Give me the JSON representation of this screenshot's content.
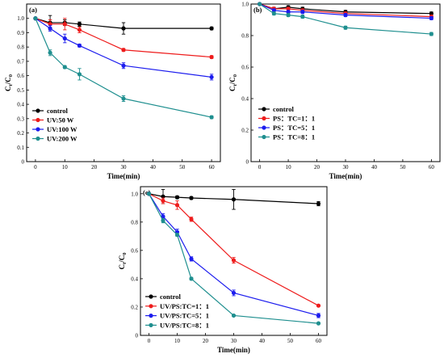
{
  "chart_data": [
    {
      "type": "line",
      "panel": "(a)",
      "xlabel": "Time(min)",
      "ylabel_main": "C",
      "ylabel_sub1": "t",
      "ylabel_mid": "/C",
      "ylabel_sub2": "0",
      "xlim": [
        -3,
        63
      ],
      "ylim": [
        0,
        1.1
      ],
      "xticks": [
        0,
        10,
        20,
        30,
        40,
        50,
        60
      ],
      "yticks": [
        0,
        0.1,
        0.2,
        0.3,
        0.4,
        0.5,
        0.6,
        0.7,
        0.8,
        0.9,
        1.0
      ],
      "ytick_labels": [
        "0",
        "0.1",
        "0.2",
        "0.3",
        "0.4",
        "0.5",
        "0.6",
        "0.7",
        "0.8",
        "0.9",
        "1.0"
      ],
      "legend_position": "bottom-left",
      "x": [
        0,
        5,
        10,
        15,
        30,
        60
      ],
      "series": [
        {
          "name": "control",
          "color": "#000000",
          "values": [
            1.0,
            0.97,
            0.97,
            0.96,
            0.93,
            0.93
          ],
          "errors": [
            0,
            0.05,
            0.02,
            0.015,
            0.04,
            0.01
          ]
        },
        {
          "name": "UV:50 W",
          "color": "#ee1c1c",
          "values": [
            1.0,
            0.96,
            0.96,
            0.92,
            0.78,
            0.73
          ],
          "errors": [
            0,
            0.03,
            0.04,
            0.02,
            0.01,
            0.01
          ]
        },
        {
          "name": "UV:100 W",
          "color": "#1c1cee",
          "values": [
            1.0,
            0.93,
            0.86,
            0.81,
            0.67,
            0.59
          ],
          "errors": [
            0,
            0.02,
            0.03,
            0.01,
            0.02,
            0.02
          ]
        },
        {
          "name": "UV:200 W",
          "color": "#1f8f8f",
          "values": [
            1.0,
            0.76,
            0.66,
            0.61,
            0.44,
            0.31
          ],
          "errors": [
            0,
            0.02,
            0.01,
            0.04,
            0.02,
            0.01
          ]
        }
      ]
    },
    {
      "type": "line",
      "panel": "(b)",
      "xlabel": "Time(min)",
      "ylabel_main": "C",
      "ylabel_sub1": "t",
      "ylabel_mid": "/C",
      "ylabel_sub2": "0",
      "xlim": [
        -3,
        63
      ],
      "ylim": [
        0,
        1.0
      ],
      "xticks": [
        0,
        10,
        20,
        30,
        40,
        50,
        60
      ],
      "yticks": [
        0,
        0.2,
        0.4,
        0.6,
        0.8,
        1.0
      ],
      "ytick_labels": [
        "0",
        "0.2",
        "0.4",
        "0.6",
        "0.8",
        "1.0"
      ],
      "legend_position": "bottom-left",
      "x": [
        0,
        5,
        10,
        15,
        30,
        60
      ],
      "series": [
        {
          "name": "control",
          "color": "#000000",
          "values": [
            1.0,
            0.97,
            0.98,
            0.97,
            0.95,
            0.94
          ],
          "errors": [
            0,
            0.01,
            0.01,
            0.01,
            0.01,
            0.01
          ]
        },
        {
          "name": "PS：TC=1：1",
          "color": "#ee1c1c",
          "values": [
            1.0,
            0.97,
            0.97,
            0.96,
            0.94,
            0.92
          ],
          "errors": [
            0,
            0.01,
            0.01,
            0.01,
            0.01,
            0.01
          ]
        },
        {
          "name": "PS：TC=5：1",
          "color": "#1c1cee",
          "values": [
            1.0,
            0.96,
            0.95,
            0.95,
            0.93,
            0.91
          ],
          "errors": [
            0,
            0.01,
            0.01,
            0.01,
            0.01,
            0.01
          ]
        },
        {
          "name": "PS：TC=8：1",
          "color": "#1f8f8f",
          "values": [
            1.0,
            0.94,
            0.93,
            0.92,
            0.85,
            0.81
          ],
          "errors": [
            0,
            0.01,
            0.01,
            0.01,
            0.01,
            0.01
          ]
        }
      ]
    },
    {
      "type": "line",
      "panel": "(c)",
      "xlabel": "Time(min)",
      "ylabel_main": "C",
      "ylabel_sub1": "t",
      "ylabel_mid": "/C",
      "ylabel_sub2": "0",
      "xlim": [
        -3,
        63
      ],
      "ylim": [
        0,
        1.05
      ],
      "xticks": [
        0,
        10,
        20,
        30,
        40,
        50,
        60
      ],
      "yticks": [
        0,
        0.2,
        0.4,
        0.6,
        0.8,
        1.0
      ],
      "ytick_labels": [
        "0",
        "0.2",
        "0.4",
        "0.6",
        "0.8",
        "1.0"
      ],
      "legend_position": "bottom-left",
      "x": [
        0,
        5,
        10,
        15,
        30,
        60
      ],
      "series": [
        {
          "name": "control",
          "color": "#000000",
          "values": [
            1.0,
            0.98,
            0.975,
            0.97,
            0.96,
            0.93
          ],
          "errors": [
            0,
            0.05,
            0.01,
            0.01,
            0.07,
            0.015
          ]
        },
        {
          "name": "UV/PS:TC=1：1",
          "color": "#ee1c1c",
          "values": [
            1.0,
            0.95,
            0.92,
            0.82,
            0.53,
            0.21
          ],
          "errors": [
            0,
            0.02,
            0.03,
            0.015,
            0.02,
            0.005
          ]
        },
        {
          "name": "UV/PS:TC=5：1",
          "color": "#1c1cee",
          "values": [
            1.0,
            0.84,
            0.73,
            0.54,
            0.3,
            0.14
          ],
          "errors": [
            0,
            0.02,
            0.02,
            0.015,
            0.02,
            0.015
          ]
        },
        {
          "name": "UV/PS:TC=8：1",
          "color": "#1f8f8f",
          "values": [
            1.0,
            0.81,
            0.71,
            0.4,
            0.14,
            0.085
          ],
          "errors": [
            0,
            0.015,
            0.01,
            0.01,
            0.005,
            0.005
          ]
        }
      ]
    }
  ]
}
